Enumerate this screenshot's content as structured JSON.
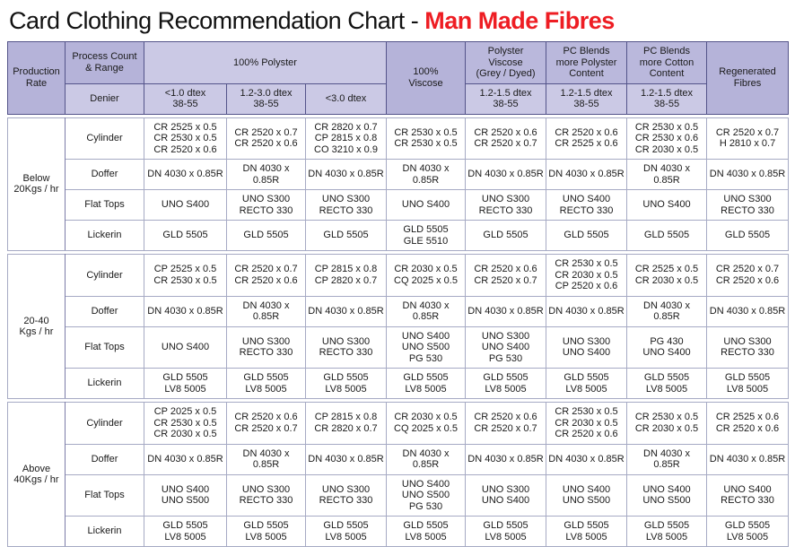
{
  "title": {
    "main": "Card Clothing Recommendation Chart - ",
    "accent": "Man Made Fibres"
  },
  "colors": {
    "accent_red": "#ee1d23",
    "header_dark_lavender": "#b5b3d9",
    "header_light_lavender": "#cbc9e5",
    "border_dark": "#54548a",
    "border_light": "#a6aac4"
  },
  "table": {
    "header": {
      "production_rate": "Production\nRate",
      "process_count": "Process Count\n& Range",
      "denier": "Denier",
      "polyster": "100% Polyster",
      "viscose": "100%\nViscose",
      "polyster_viscose": "Polyster\nViscose\n(Grey / Dyed)",
      "pc_more_polyster": "PC Blends\nmore Polyster\nContent",
      "pc_more_cotton": "PC Blends\nmore Cotton\nContent",
      "regenerated": "Regenerated\nFibres",
      "sub": [
        "<1.0 dtex\n38-55",
        "1.2-3.0 dtex\n38-55",
        "<3.0 dtex",
        "1.2-1.5 dtex\n38-55",
        "1.2-1.5 dtex\n38-55",
        "1.2-1.5 dtex\n38-55"
      ]
    },
    "groups": [
      {
        "rate": "Below\n20Kgs / hr",
        "rows": [
          {
            "process": "Cylinder",
            "cells": [
              "CR 2525 x 0.5\nCR 2530 x 0.5\nCR 2520 x 0.6",
              "CR 2520 x 0.7\nCR 2520 x 0.6",
              "CR 2820 x 0.7\nCP 2815 x 0.8\nCO 3210 x 0.9",
              "CR 2530 x 0.5\nCR 2530 x 0.5",
              "CR 2520 x 0.6\nCR 2520 x 0.7",
              "CR 2520 x 0.6\nCR 2525 x 0.6",
              "CR 2530 x 0.5\nCR 2530 x 0.6\nCR 2030 x 0.5",
              "CR 2520 x 0.7\nH 2810 x 0.7"
            ]
          },
          {
            "process": "Doffer",
            "cells": [
              "DN 4030 x 0.85R",
              "DN 4030 x 0.85R",
              "DN 4030 x 0.85R",
              "DN 4030 x 0.85R",
              "DN 4030 x 0.85R",
              "DN 4030 x 0.85R",
              "DN 4030 x 0.85R",
              "DN 4030 x 0.85R"
            ]
          },
          {
            "process": "Flat Tops",
            "cells": [
              "UNO S400",
              "UNO S300\nRECTO 330",
              "UNO S300\nRECTO 330",
              "UNO S400",
              "UNO S300\nRECTO 330",
              "UNO S400\nRECTO 330",
              "UNO S400",
              "UNO S300\nRECTO 330"
            ]
          },
          {
            "process": "Lickerin",
            "cells": [
              "GLD 5505",
              "GLD 5505",
              "GLD 5505",
              "GLD 5505\nGLE 5510",
              "GLD 5505",
              "GLD 5505",
              "GLD 5505",
              "GLD 5505"
            ]
          }
        ]
      },
      {
        "rate": "20-40\nKgs / hr",
        "rows": [
          {
            "process": "Cylinder",
            "cells": [
              "CP 2525 x 0.5\nCR 2530 x 0.5",
              "CR 2520 x 0.7\nCR 2520 x 0.6",
              "CP 2815 x 0.8\nCP 2820 x 0.7",
              "CR 2030 x 0.5\nCQ 2025 x 0.5",
              "CR 2520 x 0.6\nCR 2520 x 0.7",
              "CR 2530 x 0.5\nCR 2030 x 0.5\nCP 2520 x 0.6",
              "CR 2525 x 0.5\nCR 2030 x 0.5",
              "CR 2520 x 0.7\nCR 2520 x 0.6"
            ]
          },
          {
            "process": "Doffer",
            "cells": [
              "DN 4030 x 0.85R",
              "DN 4030 x 0.85R",
              "DN 4030 x 0.85R",
              "DN 4030 x 0.85R",
              "DN 4030 x 0.85R",
              "DN 4030 x 0.85R",
              "DN 4030 x 0.85R",
              "DN 4030 x 0.85R"
            ]
          },
          {
            "process": "Flat Tops",
            "cells": [
              "UNO S400",
              "UNO S300\nRECTO 330",
              "UNO S300\nRECTO 330",
              "UNO S400\nUNO S500\nPG 530",
              "UNO S300\nUNO S400\nPG 530",
              "UNO S300\nUNO S400",
              "PG 430\nUNO S400",
              "UNO S300\nRECTO 330"
            ]
          },
          {
            "process": "Lickerin",
            "cells": [
              "GLD 5505\nLV8 5005",
              "GLD 5505\nLV8 5005",
              "GLD 5505\nLV8 5005",
              "GLD 5505\nLV8 5005",
              "GLD 5505\nLV8 5005",
              "GLD 5505\nLV8 5005",
              "GLD 5505\nLV8 5005",
              "GLD 5505\nLV8 5005"
            ]
          }
        ]
      },
      {
        "rate": "Above\n40Kgs / hr",
        "rows": [
          {
            "process": "Cylinder",
            "cells": [
              "CP 2025 x 0.5\nCR 2530 x 0.5\nCR 2030 x 0.5",
              "CR 2520 x 0.6\nCR 2520 x 0.7",
              "CP 2815 x 0.8\nCR 2820 x 0.7",
              "CR 2030 x 0.5\nCQ 2025 x 0.5",
              "CR 2520 x 0.6\nCR 2520 x 0.7",
              "CR 2530 x 0.5\nCR 2030 x 0.5\nCR 2520 x 0.6",
              "CR 2530 x 0.5\nCR 2030 x 0.5",
              "CR 2525 x 0.6\nCR 2520 x 0.6"
            ]
          },
          {
            "process": "Doffer",
            "cells": [
              "DN 4030 x 0.85R",
              "DN 4030 x 0.85R",
              "DN 4030 x 0.85R",
              "DN 4030 x 0.85R",
              "DN 4030 x 0.85R",
              "DN 4030 x 0.85R",
              "DN 4030 x 0.85R",
              "DN 4030 x 0.85R"
            ]
          },
          {
            "process": "Flat Tops",
            "cells": [
              "UNO S400\nUNO S500",
              "UNO S300\nRECTO 330",
              "UNO S300\nRECTO 330",
              "UNO S400\nUNO S500\nPG 530",
              "UNO S300\nUNO S400",
              "UNO S400\nUNO S500",
              "UNO S400\nUNO S500",
              "UNO S400\nRECTO 330"
            ]
          },
          {
            "process": "Lickerin",
            "cells": [
              "GLD 5505\nLV8 5005",
              "GLD 5505\nLV8 5005",
              "GLD 5505\nLV8 5005",
              "GLD 5505\nLV8 5005",
              "GLD 5505\nLV8 5005",
              "GLD 5505\nLV8 5005",
              "GLD 5505\nLV8 5005",
              "GLD 5505\nLV8 5005"
            ]
          }
        ]
      }
    ]
  }
}
